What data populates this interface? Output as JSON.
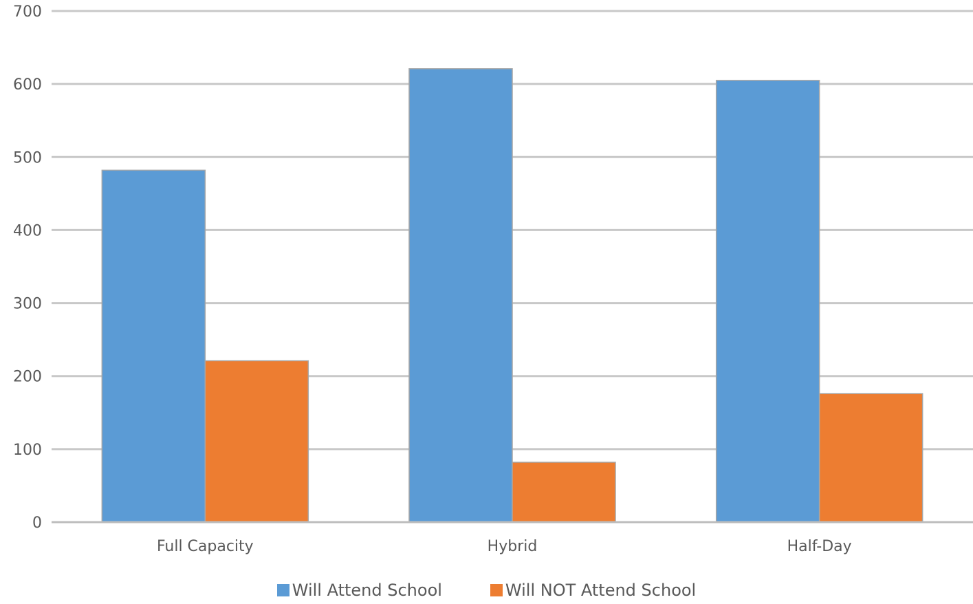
{
  "chart_data": {
    "type": "bar",
    "title": "",
    "xlabel": "",
    "ylabel": "",
    "categories": [
      "Full Capacity",
      "Hybrid",
      "Half-Day"
    ],
    "series": [
      {
        "name": "Will Attend School",
        "values": [
          482,
          621,
          605
        ],
        "color": "#5b9bd5"
      },
      {
        "name": "Will NOT Attend School",
        "values": [
          221,
          82,
          176
        ],
        "color": "#ed7d31"
      }
    ],
    "ylim": [
      0,
      700
    ],
    "yticks": [
      0,
      100,
      200,
      300,
      400,
      500,
      600,
      700
    ],
    "grid": true,
    "legend_position": "bottom"
  }
}
